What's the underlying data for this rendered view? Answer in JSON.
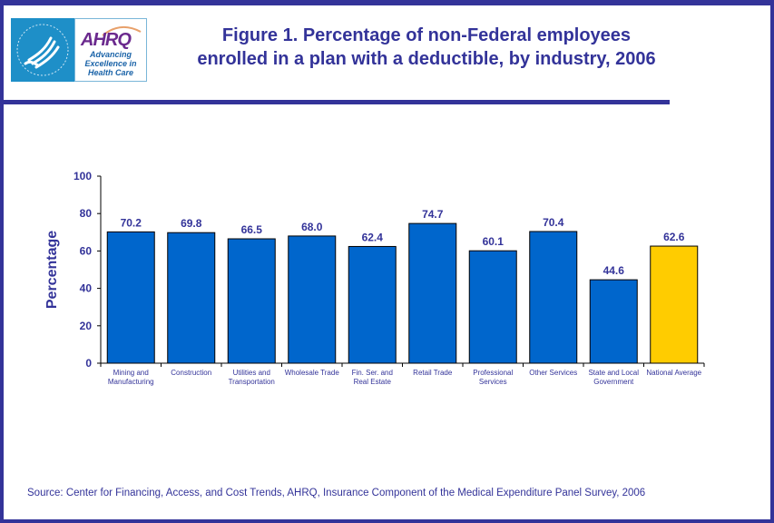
{
  "header": {
    "logo_hhs": "hhs-eagle-logo",
    "logo_ahrq_name": "AHRQ",
    "logo_ahrq_tagline": [
      "Advancing",
      "Excellence in",
      "Health Care"
    ],
    "title_line1": "Figure 1. Percentage of non-Federal employees",
    "title_line2": "enrolled in a plan with a deductible, by industry, 2006"
  },
  "footer": {
    "source": "Source: Center for Financing, Access, and Cost Trends, AHRQ, Insurance Component of the Medical Expenditure Panel Survey, 2006"
  },
  "colors": {
    "frame": "#333399",
    "bar": "#0066cc",
    "highlight_bar": "#ffcc00",
    "text": "#333399"
  },
  "chart_data": {
    "type": "bar",
    "title": "Figure 1. Percentage of non-Federal employees enrolled in a plan with a deductible, by industry, 2006",
    "xlabel": "",
    "ylabel": "Percentage",
    "ylim": [
      0,
      100
    ],
    "yticks": [
      0,
      20,
      40,
      60,
      80,
      100
    ],
    "grid": false,
    "legend": "none",
    "categories": [
      [
        "Mining and",
        "Manufacturing"
      ],
      [
        "Construction"
      ],
      [
        "Utilities and",
        "Transportation"
      ],
      [
        "Wholesale Trade"
      ],
      [
        "Fin. Ser. and",
        "Real Estate"
      ],
      [
        "Retail Trade"
      ],
      [
        "Professional",
        "Services"
      ],
      [
        "Other Services"
      ],
      [
        "State and Local",
        "Government"
      ],
      [
        "National Average"
      ]
    ],
    "values": [
      70.2,
      69.8,
      66.5,
      68.0,
      62.4,
      74.7,
      60.1,
      70.4,
      44.6,
      62.6
    ],
    "value_labels": [
      "70.2",
      "69.8",
      "66.5",
      "68.0",
      "62.4",
      "74.7",
      "60.1",
      "70.4",
      "44.6",
      "62.6"
    ],
    "highlight_index": 9
  }
}
